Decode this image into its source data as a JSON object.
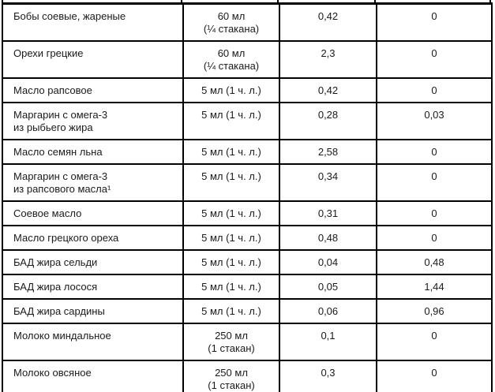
{
  "page": {
    "background_color": "#ffffff",
    "border_color": "#000000",
    "text_color": "#1a1a1a"
  },
  "table": {
    "rows": [
      {
        "food": "Бобы соевые, жареные",
        "serving": "60 мл\n(¼ стакана)",
        "value1": "0,42",
        "value2": "0"
      },
      {
        "food": "Орехи грецкие",
        "serving": "60 мл\n(¼ стакана)",
        "value1": "2,3",
        "value2": "0"
      },
      {
        "food": "Масло рапсовое",
        "serving": "5 мл (1 ч. л.)",
        "value1": "0,42",
        "value2": "0"
      },
      {
        "food": "Маргарин с омега-3\nиз рыбьего жира",
        "serving": "5 мл (1 ч. л.)",
        "value1": "0,28",
        "value2": "0,03"
      },
      {
        "food": "Масло семян льна",
        "serving": "5 мл (1 ч. л.)",
        "value1": "2,58",
        "value2": "0"
      },
      {
        "food": "Маргарин с омега-3\nиз рапсового масла¹",
        "serving": "5 мл (1 ч. л.)",
        "value1": "0,34",
        "value2": "0"
      },
      {
        "food": "Соевое масло",
        "serving": "5 мл (1 ч. л.)",
        "value1": "0,31",
        "value2": "0"
      },
      {
        "food": "Масло грецкого ореха",
        "serving": "5 мл (1 ч. л.)",
        "value1": "0,48",
        "value2": "0"
      },
      {
        "food": "БАД жира сельди",
        "serving": "5 мл (1 ч. л.)",
        "value1": "0,04",
        "value2": "0,48"
      },
      {
        "food": "БАД жира лосося",
        "serving": "5 мл (1 ч. л.)",
        "value1": "0,05",
        "value2": "1,44"
      },
      {
        "food": "БАД жира сардины",
        "serving": "5 мл (1 ч. л.)",
        "value1": "0,06",
        "value2": "0,96"
      },
      {
        "food": "Молоко миндальное",
        "serving": "250 мл\n(1 стакан)",
        "value1": "0,1",
        "value2": "0"
      },
      {
        "food": "Молоко овсяное",
        "serving": "250 мл\n(1 стакан)",
        "value1": "0,3",
        "value2": "0"
      }
    ]
  }
}
